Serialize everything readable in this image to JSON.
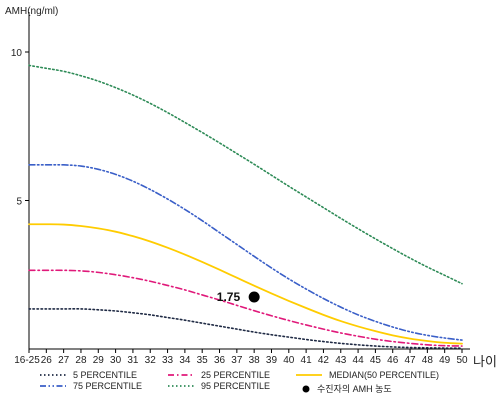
{
  "chart_data": {
    "type": "line",
    "title": "",
    "ylabel": "AMH(ng/ml)",
    "xlabel": "나이",
    "ylim": [
      0,
      11
    ],
    "yticks": [
      5,
      10
    ],
    "categories": [
      "16-25",
      "26",
      "27",
      "28",
      "29",
      "30",
      "31",
      "32",
      "33",
      "34",
      "35",
      "36",
      "37",
      "38",
      "39",
      "40",
      "41",
      "42",
      "43",
      "44",
      "45",
      "46",
      "47",
      "48",
      "49",
      "50"
    ],
    "grid": false,
    "legend_position": "bottom",
    "series": [
      {
        "name": "5 PERCENTILE",
        "color": "#1f2a44",
        "dash": "dotted",
        "values": [
          1.35,
          1.35,
          1.35,
          1.35,
          1.32,
          1.28,
          1.22,
          1.15,
          1.06,
          0.97,
          0.87,
          0.77,
          0.67,
          0.57,
          0.48,
          0.4,
          0.32,
          0.25,
          0.19,
          0.14,
          0.1,
          0.07,
          0.05,
          0.04,
          0.03,
          0.03
        ]
      },
      {
        "name": "25 PERCENTILE",
        "color": "#e0197a",
        "dash": "dashdot",
        "values": [
          2.65,
          2.65,
          2.65,
          2.63,
          2.58,
          2.5,
          2.4,
          2.28,
          2.14,
          1.99,
          1.82,
          1.65,
          1.47,
          1.29,
          1.12,
          0.96,
          0.81,
          0.67,
          0.54,
          0.43,
          0.33,
          0.25,
          0.19,
          0.14,
          0.11,
          0.1
        ]
      },
      {
        "name": "MEDIAN(50 PERCENTILE)",
        "color": "#ffcc00",
        "dash": "solid",
        "values": [
          4.2,
          4.2,
          4.19,
          4.14,
          4.06,
          3.95,
          3.8,
          3.62,
          3.41,
          3.18,
          2.93,
          2.67,
          2.4,
          2.13,
          1.87,
          1.62,
          1.38,
          1.15,
          0.94,
          0.76,
          0.6,
          0.46,
          0.35,
          0.27,
          0.21,
          0.18
        ]
      },
      {
        "name": "75 PERCENTILE",
        "color": "#3a5fc8",
        "dash": "dashdotdot",
        "values": [
          6.2,
          6.2,
          6.2,
          6.16,
          6.05,
          5.88,
          5.65,
          5.37,
          5.05,
          4.7,
          4.32,
          3.92,
          3.52,
          3.12,
          2.73,
          2.36,
          2.02,
          1.7,
          1.41,
          1.15,
          0.93,
          0.74,
          0.58,
          0.46,
          0.37,
          0.3
        ]
      },
      {
        "name": "95 PERCENTILE",
        "color": "#2e8b57",
        "dash": "dotted",
        "values": [
          9.55,
          9.45,
          9.35,
          9.2,
          9.02,
          8.8,
          8.55,
          8.27,
          7.96,
          7.63,
          7.29,
          6.94,
          6.58,
          6.22,
          5.85,
          5.48,
          5.12,
          4.76,
          4.4,
          4.05,
          3.71,
          3.38,
          3.06,
          2.76,
          2.48,
          2.2
        ]
      }
    ],
    "point": {
      "label": "1.75",
      "x": "38",
      "y": 1.75,
      "color": "#000000"
    },
    "point_legend": "수진자의 AMH 농도"
  }
}
